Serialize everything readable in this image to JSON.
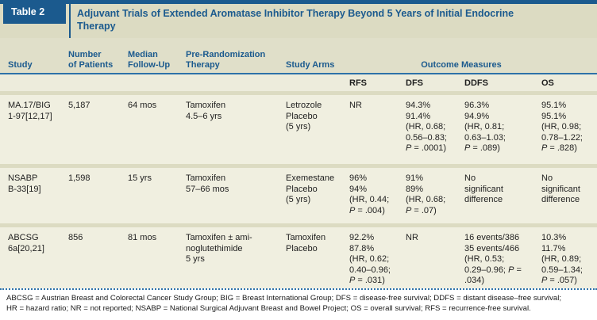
{
  "colors": {
    "accent_blue": "#1b5a8e",
    "rule_blue": "#2e72a8",
    "band_khaki": "#dcdbc2",
    "header_khaki": "#e0dfc9",
    "subheader_cream": "#edecdc",
    "row_cream": "#f0efe0"
  },
  "table_label": "Table 2",
  "title": "Adjuvant Trials of Extended Aromatase Inhibitor Therapy Beyond 5 Years of Initial Endocrine Therapy",
  "columns": {
    "study": "Study",
    "patients": [
      "Number",
      "of Patients"
    ],
    "follow_up": [
      "Median",
      "Follow-Up"
    ],
    "pre_rand": [
      "Pre-Randomization",
      "Therapy"
    ],
    "arms": "Study Arms",
    "outcome": "Outcome Measures",
    "sub": {
      "rfs": "RFS",
      "dfs": "DFS",
      "ddfs": "DDFS",
      "os": "OS"
    }
  },
  "rows": [
    {
      "study": [
        "MA.17/BIG",
        "1-97[12,17]"
      ],
      "patients": "5,187",
      "follow_up": "64 mos",
      "pre_rand": [
        "Tamoxifen",
        "4.5–6 yrs"
      ],
      "arms": [
        "Letrozole",
        "Placebo",
        "(5 yrs)"
      ],
      "rfs": "NR",
      "dfs": [
        "94.3%",
        "91.4%",
        "(HR, 0.68;",
        "0.56–0.83;",
        "P = .0001)"
      ],
      "ddfs": [
        "96.3%",
        "94.9%",
        "(HR, 0.81;",
        "0.63–1.03;",
        "P = .089)"
      ],
      "os": [
        "95.1%",
        "95.1%",
        "(HR, 0.98;",
        "0.78–1.22;",
        "P = .828)"
      ]
    },
    {
      "study": [
        "NSABP",
        "B-33[19]"
      ],
      "patients": "1,598",
      "follow_up": "15 yrs",
      "pre_rand": [
        "Tamoxifen",
        "57–66 mos"
      ],
      "arms": [
        "Exemestane",
        "Placebo",
        "(5 yrs)"
      ],
      "rfs": [
        "96%",
        "94%",
        "(HR, 0.44;",
        "P = .004)"
      ],
      "dfs": [
        "91%",
        "89%",
        "(HR, 0.68;",
        "P = .07)"
      ],
      "ddfs": [
        "No",
        "significant",
        "difference"
      ],
      "os": [
        "No",
        "significant",
        "difference"
      ]
    },
    {
      "study": [
        "ABCSG",
        "6a[20,21]"
      ],
      "patients": "856",
      "follow_up": "81 mos",
      "pre_rand": [
        "Tamoxifen ± ami-",
        "noglutethimide",
        "5 yrs"
      ],
      "arms": [
        "Tamoxifen",
        "Placebo"
      ],
      "rfs": [
        "92.2%",
        "87.8%",
        "(HR, 0.62;",
        "0.40–0.96;",
        "P = .031)"
      ],
      "dfs": "NR",
      "ddfs": [
        "16 events/386",
        "35 events/466",
        "(HR, 0.53;",
        "0.29–0.96; P =",
        ".034)"
      ],
      "os": [
        "10.3%",
        "11.7%",
        "(HR, 0.89;",
        "0.59–1.34;",
        "P = .057)"
      ]
    }
  ],
  "footnote": [
    "ABCSG = Austrian Breast and Colorectal Cancer Study Group; BIG = Breast International Group; DFS = disease-free survival; DDFS = distant disease–free survival;",
    "HR = hazard ratio; NR = not reported; NSABP = National Surgical Adjuvant Breast and Bowel Project; OS = overall survival; RFS = recurrence-free survival."
  ]
}
